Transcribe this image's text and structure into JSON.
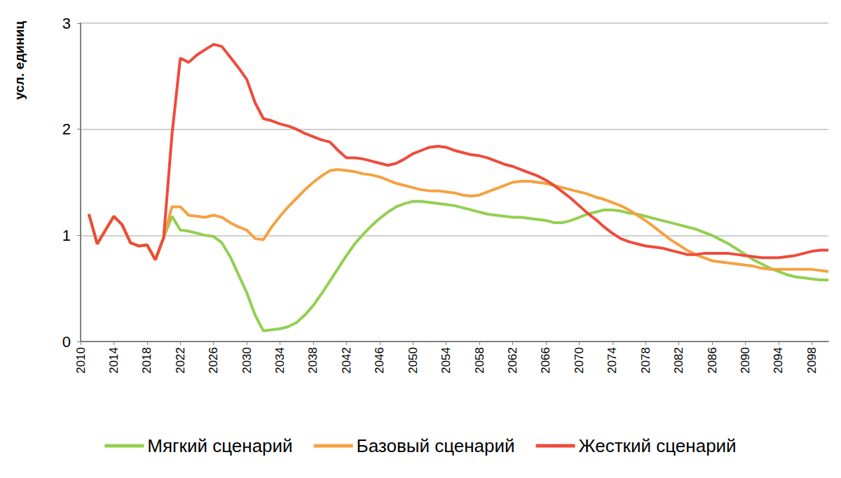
{
  "chart_data": {
    "type": "line",
    "ylabel": "усл. единиц",
    "x": [
      2011,
      2012,
      2013,
      2014,
      2015,
      2016,
      2017,
      2018,
      2019,
      2020,
      2021,
      2022,
      2023,
      2024,
      2025,
      2026,
      2027,
      2028,
      2029,
      2030,
      2031,
      2032,
      2033,
      2034,
      2035,
      2036,
      2037,
      2038,
      2039,
      2040,
      2041,
      2042,
      2043,
      2044,
      2045,
      2046,
      2047,
      2048,
      2049,
      2050,
      2051,
      2052,
      2053,
      2054,
      2055,
      2056,
      2057,
      2058,
      2059,
      2060,
      2061,
      2062,
      2063,
      2064,
      2065,
      2066,
      2067,
      2068,
      2069,
      2070,
      2071,
      2072,
      2073,
      2074,
      2075,
      2076,
      2077,
      2078,
      2079,
      2080,
      2081,
      2082,
      2083,
      2084,
      2085,
      2086,
      2087,
      2088,
      2089,
      2090,
      2091,
      2092,
      2093,
      2094,
      2095,
      2096,
      2097,
      2098,
      2099,
      2100
    ],
    "series": [
      {
        "name": "Мягкий сценарий",
        "color": "#92d050",
        "values": [
          1.2,
          0.92,
          1.05,
          1.18,
          1.1,
          0.93,
          0.9,
          0.91,
          0.77,
          0.98,
          1.18,
          1.05,
          1.04,
          1.02,
          1.0,
          0.99,
          0.93,
          0.8,
          0.63,
          0.46,
          0.25,
          0.1,
          0.11,
          0.12,
          0.14,
          0.18,
          0.25,
          0.34,
          0.45,
          0.57,
          0.69,
          0.81,
          0.92,
          1.01,
          1.09,
          1.16,
          1.22,
          1.27,
          1.3,
          1.32,
          1.32,
          1.31,
          1.3,
          1.29,
          1.28,
          1.26,
          1.24,
          1.22,
          1.2,
          1.19,
          1.18,
          1.17,
          1.17,
          1.16,
          1.15,
          1.14,
          1.12,
          1.12,
          1.14,
          1.17,
          1.2,
          1.22,
          1.24,
          1.24,
          1.23,
          1.21,
          1.2,
          1.18,
          1.16,
          1.14,
          1.12,
          1.1,
          1.08,
          1.06,
          1.03,
          1.0,
          0.96,
          0.92,
          0.87,
          0.82,
          0.77,
          0.73,
          0.69,
          0.66,
          0.63,
          0.61,
          0.6,
          0.59,
          0.58,
          0.58
        ]
      },
      {
        "name": "Базовый сценарий",
        "color": "#f5a142",
        "values": [
          1.2,
          0.92,
          1.05,
          1.18,
          1.1,
          0.93,
          0.9,
          0.91,
          0.77,
          0.98,
          1.27,
          1.27,
          1.19,
          1.18,
          1.17,
          1.19,
          1.17,
          1.12,
          1.08,
          1.05,
          0.97,
          0.96,
          1.08,
          1.18,
          1.27,
          1.35,
          1.43,
          1.5,
          1.56,
          1.61,
          1.62,
          1.61,
          1.6,
          1.58,
          1.57,
          1.55,
          1.52,
          1.49,
          1.47,
          1.45,
          1.43,
          1.42,
          1.42,
          1.41,
          1.4,
          1.38,
          1.37,
          1.38,
          1.41,
          1.44,
          1.47,
          1.5,
          1.51,
          1.51,
          1.5,
          1.49,
          1.47,
          1.45,
          1.43,
          1.41,
          1.39,
          1.36,
          1.34,
          1.31,
          1.28,
          1.24,
          1.19,
          1.14,
          1.08,
          1.02,
          0.96,
          0.91,
          0.86,
          0.82,
          0.79,
          0.76,
          0.75,
          0.74,
          0.73,
          0.72,
          0.71,
          0.69,
          0.68,
          0.68,
          0.68,
          0.68,
          0.68,
          0.68,
          0.67,
          0.66
        ]
      },
      {
        "name": "Жесткий сценарий",
        "color": "#ee4b3c",
        "values": [
          1.2,
          0.92,
          1.05,
          1.18,
          1.1,
          0.93,
          0.9,
          0.91,
          0.77,
          0.98,
          1.95,
          2.67,
          2.63,
          2.7,
          2.75,
          2.8,
          2.78,
          2.68,
          2.58,
          2.47,
          2.25,
          2.1,
          2.08,
          2.05,
          2.03,
          2.0,
          1.96,
          1.93,
          1.9,
          1.88,
          1.8,
          1.73,
          1.73,
          1.72,
          1.7,
          1.68,
          1.66,
          1.68,
          1.72,
          1.77,
          1.8,
          1.83,
          1.84,
          1.83,
          1.8,
          1.78,
          1.76,
          1.75,
          1.73,
          1.7,
          1.67,
          1.65,
          1.62,
          1.59,
          1.56,
          1.52,
          1.47,
          1.41,
          1.35,
          1.28,
          1.21,
          1.15,
          1.08,
          1.02,
          0.97,
          0.94,
          0.92,
          0.9,
          0.89,
          0.88,
          0.86,
          0.84,
          0.82,
          0.82,
          0.83,
          0.83,
          0.83,
          0.83,
          0.82,
          0.81,
          0.8,
          0.79,
          0.79,
          0.79,
          0.8,
          0.81,
          0.83,
          0.85,
          0.86,
          0.86
        ]
      }
    ],
    "xlim": [
      2010,
      2100
    ],
    "xticks": [
      2010,
      2014,
      2018,
      2022,
      2026,
      2030,
      2034,
      2038,
      2042,
      2046,
      2050,
      2054,
      2058,
      2062,
      2066,
      2070,
      2074,
      2078,
      2082,
      2086,
      2090,
      2094,
      2098
    ],
    "ylim": [
      0,
      3
    ],
    "yticks": [
      0,
      1,
      2,
      3
    ],
    "grid": true,
    "legend": "bottom"
  }
}
